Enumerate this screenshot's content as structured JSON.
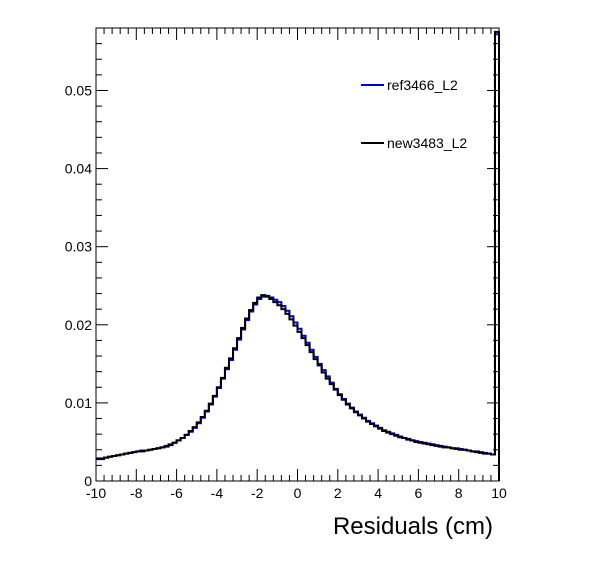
{
  "chart_data": {
    "type": "line",
    "style": "step-histogram",
    "title": "",
    "xlabel": "Residuals (cm)",
    "ylabel": "",
    "xlim": [
      -10,
      10
    ],
    "ylim": [
      0,
      0.058
    ],
    "x_ticks": [
      "-10",
      "-8",
      "-6",
      "-4",
      "-2",
      "0",
      "2",
      "4",
      "6",
      "8",
      "10"
    ],
    "y_ticks": [
      "0",
      "0.01",
      "0.02",
      "0.03",
      "0.04",
      "0.05"
    ],
    "grid": false,
    "legend_position": "top-right",
    "bins": {
      "min": -10,
      "max": 10,
      "count": 100
    },
    "series": [
      {
        "name": "ref3466_L2",
        "color": "#0000cc",
        "values": [
          0.0029,
          0.0029,
          0.003,
          0.0031,
          0.0032,
          0.0033,
          0.0034,
          0.0035,
          0.0036,
          0.0037,
          0.0038,
          0.0039,
          0.0039,
          0.004,
          0.0041,
          0.0042,
          0.0043,
          0.0045,
          0.0047,
          0.0049,
          0.0052,
          0.0055,
          0.0059,
          0.0063,
          0.0068,
          0.0074,
          0.0081,
          0.0089,
          0.0098,
          0.0108,
          0.0119,
          0.0131,
          0.0143,
          0.0155,
          0.0168,
          0.0181,
          0.0194,
          0.0206,
          0.0217,
          0.0226,
          0.0233,
          0.0236,
          0.0237,
          0.0235,
          0.0232,
          0.0229,
          0.0224,
          0.0218,
          0.0211,
          0.0203,
          0.0195,
          0.0186,
          0.0177,
          0.0168,
          0.0159,
          0.015,
          0.0142,
          0.0134,
          0.0126,
          0.0118,
          0.0111,
          0.0105,
          0.0099,
          0.0094,
          0.0089,
          0.0085,
          0.0081,
          0.0077,
          0.0074,
          0.0071,
          0.0068,
          0.0065,
          0.0063,
          0.0061,
          0.0059,
          0.0057,
          0.0055,
          0.0054,
          0.0052,
          0.0051,
          0.005,
          0.0049,
          0.0048,
          0.0047,
          0.0046,
          0.0045,
          0.0044,
          0.0043,
          0.0042,
          0.0042,
          0.0041,
          0.004,
          0.0039,
          0.0038,
          0.0038,
          0.0037,
          0.0036,
          0.0035,
          0.0034,
          0.0572
        ]
      },
      {
        "name": "new3483_L2",
        "color": "#000000",
        "values": [
          0.0028,
          0.0028,
          0.003,
          0.0031,
          0.0032,
          0.0033,
          0.0034,
          0.0035,
          0.0036,
          0.0037,
          0.0038,
          0.0038,
          0.0039,
          0.004,
          0.0041,
          0.0042,
          0.0043,
          0.0044,
          0.0046,
          0.0049,
          0.0052,
          0.0055,
          0.0059,
          0.0064,
          0.0069,
          0.0075,
          0.0082,
          0.009,
          0.0099,
          0.0109,
          0.012,
          0.0132,
          0.0145,
          0.0157,
          0.017,
          0.0183,
          0.0196,
          0.0208,
          0.0219,
          0.0228,
          0.0235,
          0.0238,
          0.0236,
          0.0233,
          0.0229,
          0.0225,
          0.022,
          0.0214,
          0.0207,
          0.0199,
          0.0191,
          0.0183,
          0.0174,
          0.0165,
          0.0156,
          0.0148,
          0.0139,
          0.0131,
          0.0124,
          0.0117,
          0.011,
          0.0104,
          0.0098,
          0.0093,
          0.0088,
          0.0084,
          0.008,
          0.0076,
          0.0073,
          0.007,
          0.0067,
          0.0064,
          0.0062,
          0.006,
          0.0058,
          0.0056,
          0.0055,
          0.0053,
          0.0052,
          0.005,
          0.0049,
          0.0048,
          0.0047,
          0.0046,
          0.0045,
          0.0044,
          0.0043,
          0.0043,
          0.0042,
          0.0041,
          0.004,
          0.004,
          0.0039,
          0.0038,
          0.0037,
          0.0036,
          0.0035,
          0.0035,
          0.0034,
          0.0575
        ]
      }
    ]
  }
}
